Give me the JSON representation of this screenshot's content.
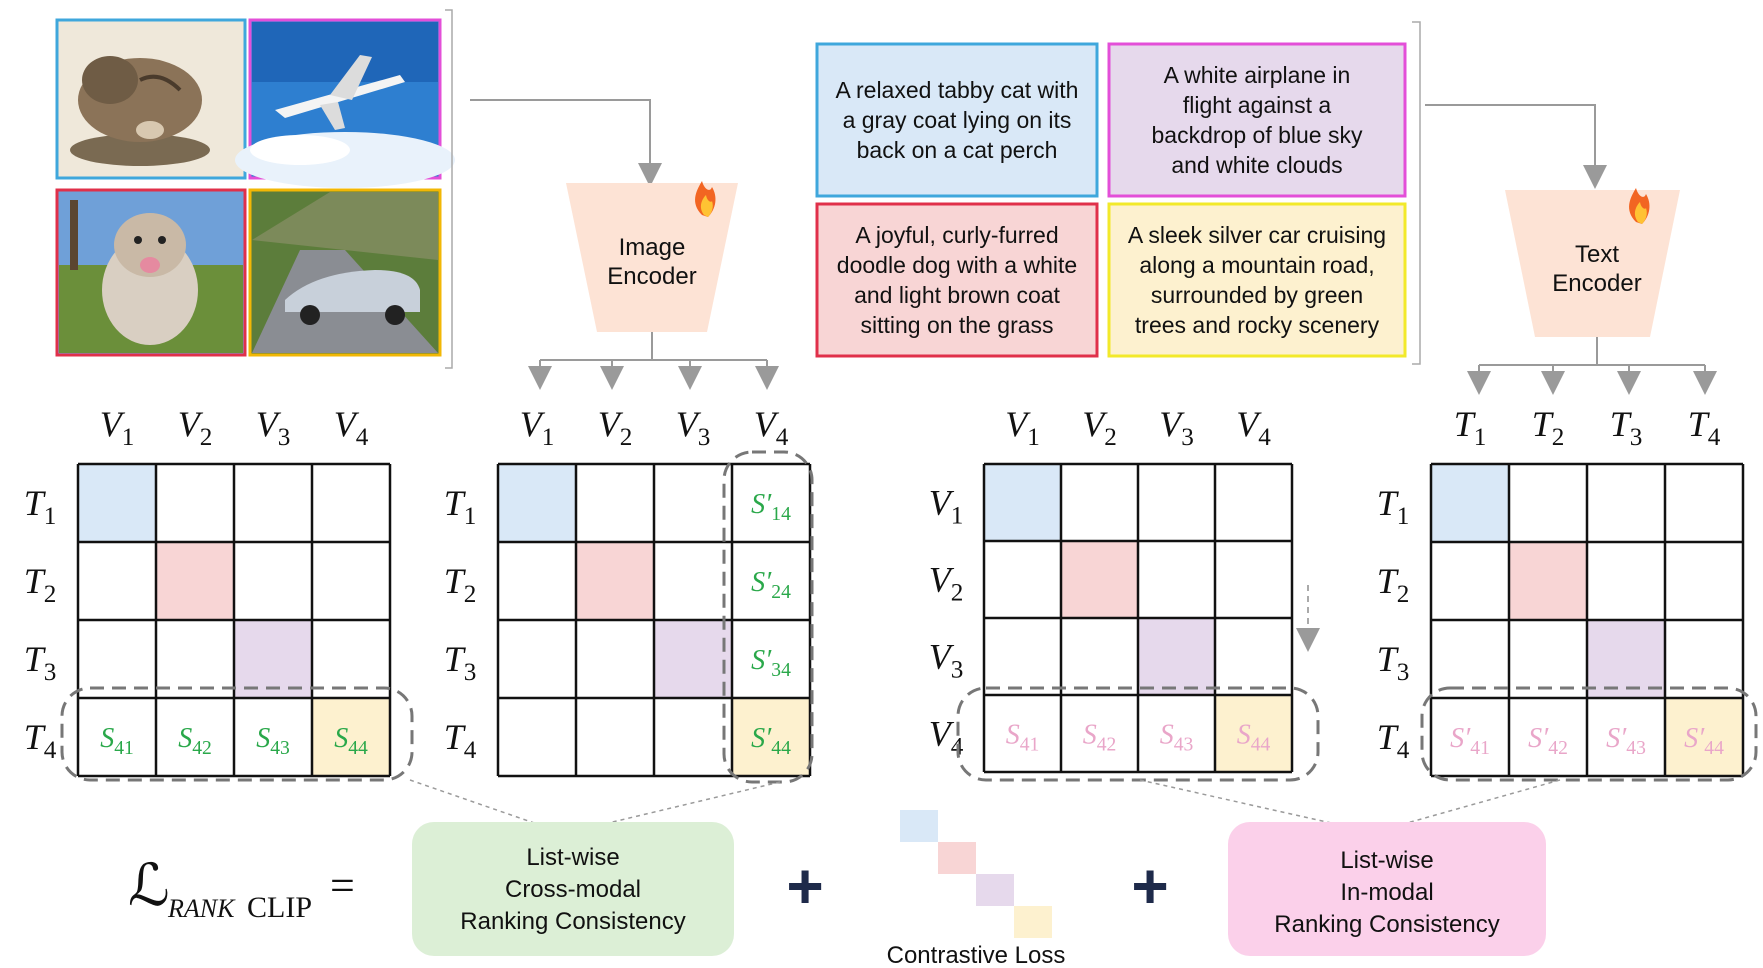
{
  "images": [
    {
      "subject": "cat",
      "border_color": "#3fa7dc"
    },
    {
      "subject": "airplane",
      "border_color": "#e34fd8"
    },
    {
      "subject": "dog",
      "border_color": "#e0304a"
    },
    {
      "subject": "car",
      "border_color": "#f2b705"
    }
  ],
  "image_encoder": {
    "line1": "Image",
    "line2": "Encoder",
    "icon": "fire-icon"
  },
  "text_encoder": {
    "line1": "Text",
    "line2": "Encoder",
    "icon": "fire-icon"
  },
  "captions": [
    {
      "lines": [
        "A relaxed tabby cat with",
        "a gray coat lying on its",
        "back on a cat perch"
      ],
      "fill": "#d9e8f7",
      "border": "#3fa7dc"
    },
    {
      "lines": [
        "A white airplane in",
        "flight against a",
        "backdrop of blue sky",
        "and white clouds"
      ],
      "fill": "#e6d9ec",
      "border": "#e34fd8"
    },
    {
      "lines": [
        "A joyful, curly-furred",
        "doodle dog with a white",
        "and light brown coat",
        "sitting on the grass"
      ],
      "fill": "#f8d5d5",
      "border": "#e0304a"
    },
    {
      "lines": [
        "A sleek silver car cruising",
        "along a mountain road,",
        "surrounded by green",
        "trees and rocky scenery"
      ],
      "fill": "#fdf1cf",
      "border": "#f2e92a"
    }
  ],
  "matrices": [
    {
      "id": "matrix-1",
      "cols": [
        "V",
        "V",
        "V",
        "V"
      ],
      "rows": [
        "T",
        "T",
        "T",
        "T"
      ],
      "entries": [
        {
          "row": 3,
          "col": 0,
          "base": "S",
          "sub": "41",
          "prime": false
        },
        {
          "row": 3,
          "col": 1,
          "base": "S",
          "sub": "42",
          "prime": false
        },
        {
          "row": 3,
          "col": 2,
          "base": "S",
          "sub": "43",
          "prime": false
        },
        {
          "row": 3,
          "col": 3,
          "base": "S",
          "sub": "44",
          "prime": false
        }
      ],
      "entry_color": "#2aa84a"
    },
    {
      "id": "matrix-2",
      "cols": [
        "V",
        "V",
        "V",
        "V"
      ],
      "rows": [
        "T",
        "T",
        "T",
        "T"
      ],
      "entries": [
        {
          "row": 0,
          "col": 3,
          "base": "S",
          "sub": "14",
          "prime": true
        },
        {
          "row": 1,
          "col": 3,
          "base": "S",
          "sub": "24",
          "prime": true
        },
        {
          "row": 2,
          "col": 3,
          "base": "S",
          "sub": "34",
          "prime": true
        },
        {
          "row": 3,
          "col": 3,
          "base": "S",
          "sub": "44",
          "prime": true
        }
      ],
      "entry_color": "#2aa84a"
    },
    {
      "id": "matrix-3",
      "cols": [
        "V",
        "V",
        "V",
        "V"
      ],
      "rows": [
        "V",
        "V",
        "V",
        "V"
      ],
      "entries": [
        {
          "row": 3,
          "col": 0,
          "base": "S",
          "sub": "41",
          "prime": false
        },
        {
          "row": 3,
          "col": 1,
          "base": "S",
          "sub": "42",
          "prime": false
        },
        {
          "row": 3,
          "col": 2,
          "base": "S",
          "sub": "43",
          "prime": false
        },
        {
          "row": 3,
          "col": 3,
          "base": "S",
          "sub": "44",
          "prime": false
        }
      ],
      "entry_color": "#e9a6c9"
    },
    {
      "id": "matrix-4",
      "cols": [
        "T",
        "T",
        "T",
        "T"
      ],
      "rows": [
        "T",
        "T",
        "T",
        "T"
      ],
      "entries": [
        {
          "row": 3,
          "col": 0,
          "base": "S",
          "sub": "41",
          "prime": true
        },
        {
          "row": 3,
          "col": 1,
          "base": "S",
          "sub": "42",
          "prime": true
        },
        {
          "row": 3,
          "col": 2,
          "base": "S",
          "sub": "43",
          "prime": true
        },
        {
          "row": 3,
          "col": 3,
          "base": "S",
          "sub": "44",
          "prime": true
        }
      ],
      "entry_color": "#e9a6c9"
    }
  ],
  "diagonal_colors": [
    "#d9e8f7",
    "#f8d5d5",
    "#e6d9ec",
    "#fdf1cf"
  ],
  "formula": {
    "script_L": "ℒ",
    "subscript_rank": "RANK",
    "subscript_clip": "CLIP",
    "equals": "=",
    "plus": "+"
  },
  "boxes": {
    "cross_modal": {
      "lines": [
        "List-wise",
        "Cross-modal",
        "Ranking Consistency"
      ],
      "fill": "#dcefd6"
    },
    "in_modal": {
      "lines": [
        "List-wise",
        "In-modal",
        "Ranking Consistency"
      ],
      "fill": "#fbd0ea"
    },
    "contrastive_label": "Contrastive Loss"
  }
}
